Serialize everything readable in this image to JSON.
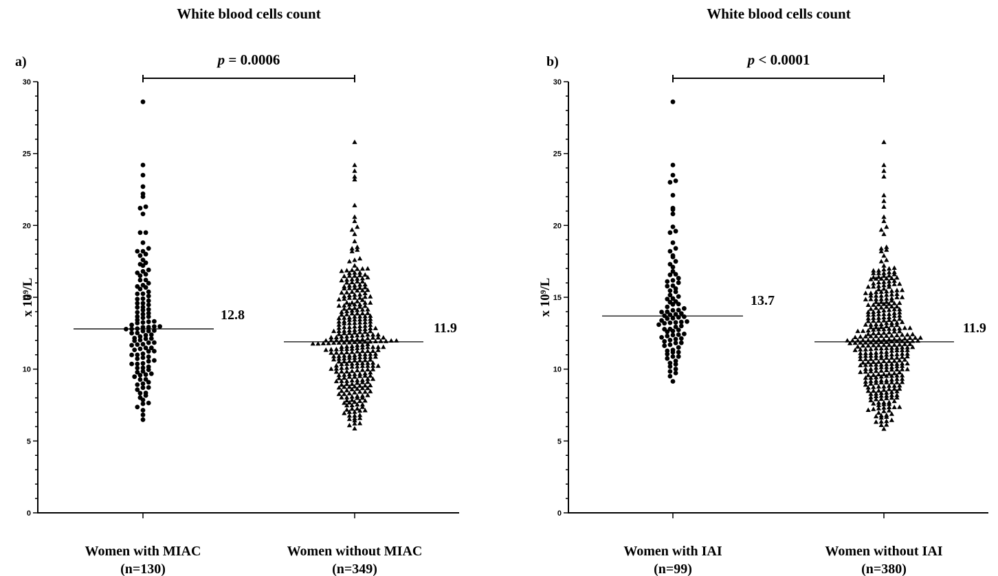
{
  "chart_data": [
    {
      "type": "scatter",
      "title": "White blood cells count",
      "panel_label": "a)",
      "ylabel": "x 10⁹/L",
      "ylim": [
        0,
        30
      ],
      "yticks": [
        0,
        5,
        10,
        15,
        20,
        25,
        30
      ],
      "categories": [
        {
          "label": "Women with MIAC",
          "n_label": "(n=130)",
          "n": 130,
          "marker": "circle",
          "median": 12.8,
          "median_label": "12.8",
          "min": 6.2,
          "max": 28.6,
          "high_values": [
            28.6,
            24.2,
            23.5,
            22.7,
            22.2,
            22.0,
            21.3,
            21.2,
            20.8,
            19.5,
            19.5,
            18.8,
            18.4,
            18.2,
            18.2,
            18.0,
            17.9,
            17.6,
            17.4,
            17.3,
            17.2,
            16.9,
            16.8,
            16.7,
            16.6,
            16.5,
            16.2
          ]
        },
        {
          "label": "Women without MIAC",
          "n_label": "(n=349)",
          "n": 349,
          "marker": "triangle",
          "median": 11.9,
          "median_label": "11.9",
          "min": 5.7,
          "max": 25.8,
          "high_values": [
            25.8,
            24.2,
            23.8,
            23.4,
            23.2,
            21.4,
            20.6,
            20.3,
            19.9,
            19.7,
            19.4,
            18.9,
            18.5,
            18.4,
            18.3,
            18.2,
            17.7,
            17.6,
            17.5,
            17.2,
            17.0
          ]
        }
      ],
      "comparison": {
        "p_prefix": "p",
        "p_text": " = 0.0006"
      }
    },
    {
      "type": "scatter",
      "title": "White blood cells count",
      "panel_label": "b)",
      "ylabel": "x 10⁹/L",
      "ylim": [
        0,
        30
      ],
      "yticks": [
        0,
        5,
        10,
        15,
        20,
        25,
        30
      ],
      "categories": [
        {
          "label": "Women with IAI",
          "n_label": "(n=99)",
          "n": 99,
          "marker": "circle",
          "median": 13.7,
          "median_label": "13.7",
          "min": 8.9,
          "max": 28.6,
          "high_values": [
            28.6,
            24.2,
            23.5,
            23.1,
            23.0,
            22.1,
            21.2,
            21.1,
            20.8,
            19.9,
            19.6,
            19.5,
            18.8,
            18.4,
            18.2,
            17.9,
            17.8,
            17.5,
            17.3,
            17.1,
            16.8,
            16.6
          ]
        },
        {
          "label": "Women without IAI",
          "n_label": "(n=380)",
          "n": 380,
          "marker": "triangle",
          "median": 11.9,
          "median_label": "11.9",
          "min": 5.7,
          "max": 25.8,
          "high_values": [
            25.8,
            24.2,
            23.8,
            23.4,
            22.1,
            21.7,
            21.3,
            20.6,
            20.3,
            19.9,
            19.7,
            19.4,
            18.5,
            18.4,
            18.3,
            18.2,
            17.9,
            17.6,
            17.5,
            17.2,
            17.0
          ]
        }
      ],
      "comparison": {
        "p_prefix": "p",
        "p_text": " < 0.0001"
      }
    }
  ]
}
